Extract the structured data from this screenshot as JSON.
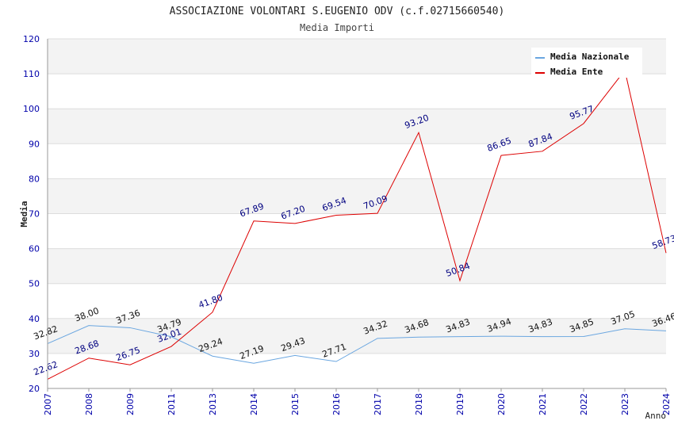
{
  "chart_data": {
    "type": "line",
    "title": "ASSOCIAZIONE VOLONTARI S.EUGENIO ODV (c.f.02715660540)",
    "subtitle": "Media Importi",
    "xlabel": "Anno",
    "ylabel": "Media",
    "ylim": [
      20,
      120
    ],
    "yticks": [
      20,
      30,
      40,
      50,
      60,
      70,
      80,
      90,
      100,
      110,
      120
    ],
    "categories": [
      "2007",
      "2008",
      "2009",
      "2011",
      "2013",
      "2014",
      "2015",
      "2016",
      "2017",
      "2018",
      "2019",
      "2020",
      "2021",
      "2022",
      "2023",
      "2024"
    ],
    "series": [
      {
        "name": "Media Nazionale",
        "color": "#6aa6e0",
        "values": [
          32.82,
          38.0,
          37.36,
          34.79,
          29.24,
          27.19,
          29.43,
          27.71,
          34.32,
          34.68,
          34.83,
          34.94,
          34.83,
          34.85,
          37.05,
          36.46
        ],
        "labels": [
          "32.82",
          "38.00",
          "37.36",
          "34.79",
          "29.24",
          "27.19",
          "29.43",
          "27.71",
          "34.32",
          "34.68",
          "34.83",
          "34.94",
          "34.83",
          "34.85",
          "37.05",
          "36.46"
        ]
      },
      {
        "name": "Media Ente",
        "color": "#dd0000",
        "values": [
          22.62,
          28.68,
          26.75,
          32.01,
          41.8,
          67.89,
          67.2,
          69.54,
          70.09,
          93.2,
          50.84,
          86.65,
          87.84,
          95.77,
          111.0,
          58.73
        ],
        "labels": [
          "22.62",
          "28.68",
          "26.75",
          "32.01",
          "41.80",
          "67.89",
          "67.20",
          "69.54",
          "70.09",
          "93.20",
          "50.84",
          "86.65",
          "87.84",
          "95.77",
          "",
          "58.73"
        ]
      }
    ],
    "grid": true,
    "legend": "top-right"
  }
}
